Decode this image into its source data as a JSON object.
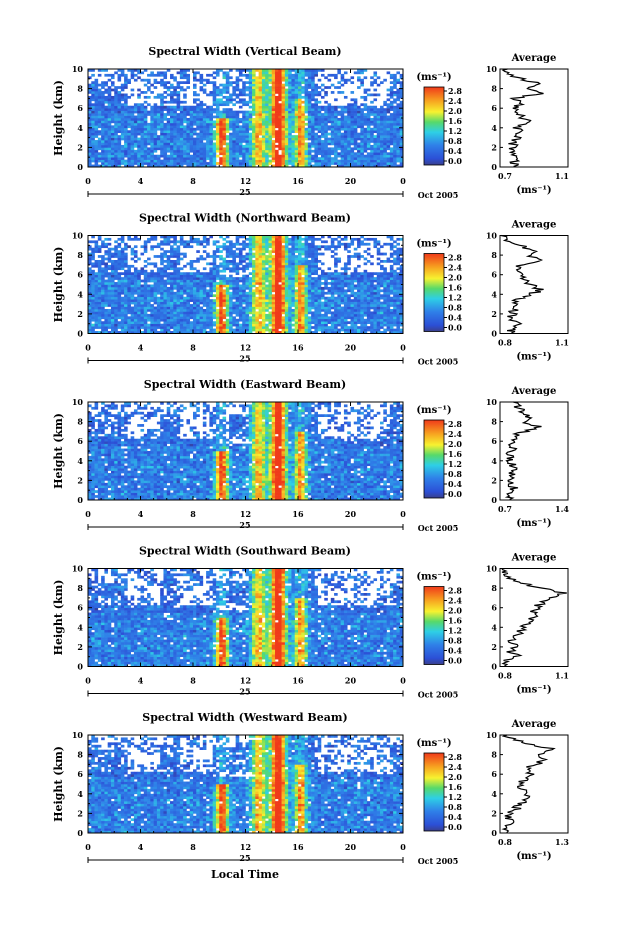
{
  "figure": {
    "time_axis_label": "Local Time",
    "date_day": "25",
    "date_month_year": "Oct 2005",
    "colorbar_unit": "(ms⁻¹)",
    "colorbar_ticks": [
      "0.0",
      "0.4",
      "0.8",
      "1.2",
      "1.6",
      "2.0",
      "2.4",
      "2.8"
    ],
    "time_ticks": [
      "0",
      "4",
      "8",
      "12",
      "16",
      "20",
      "0"
    ],
    "height_ticks": [
      "0",
      "2",
      "4",
      "6",
      "8",
      "10"
    ],
    "average_title": "Average",
    "average_xlabel": "(ms⁻¹)",
    "colors": {
      "red": "#f03a1a",
      "orange": "#f7a520",
      "yellow": "#f7f230",
      "green": "#57d96a",
      "cyan": "#2ecfe6",
      "blue": "#2f60e0",
      "navy": "#3a3f8c"
    }
  },
  "chart_data": [
    {
      "type": "heatmap",
      "title": "Spectral Width (Vertical Beam)",
      "ylabel": "Height (km)",
      "xlabel": "Local Time",
      "xlim": [
        0,
        24
      ],
      "ylim": [
        0,
        10
      ],
      "colorbar": {
        "unit": "ms⁻¹",
        "range": [
          0.0,
          2.8
        ]
      },
      "average_profile": {
        "title": "Average",
        "xlabel": "(ms⁻¹)",
        "xlim_labels": [
          "0.7",
          "1.1"
        ],
        "xlim": [
          0.7,
          1.1
        ],
        "height": [
          0.5,
          1,
          1.5,
          2,
          2.5,
          3,
          3.5,
          4,
          4.5,
          5,
          5.5,
          6,
          6.5,
          7,
          7.5,
          8,
          8.5,
          9,
          9.5,
          10
        ],
        "values": [
          0.78,
          0.8,
          0.76,
          0.79,
          0.77,
          0.8,
          0.82,
          0.79,
          0.88,
          0.84,
          0.8,
          0.79,
          0.82,
          0.78,
          0.95,
          0.86,
          0.92,
          0.82,
          0.76,
          0.74
        ]
      }
    },
    {
      "type": "heatmap",
      "title": "Spectral Width (Northward Beam)",
      "ylabel": "Height (km)",
      "xlabel": "Local Time",
      "xlim": [
        0,
        24
      ],
      "ylim": [
        0,
        10
      ],
      "colorbar": {
        "unit": "ms⁻¹",
        "range": [
          0.0,
          2.8
        ]
      },
      "average_profile": {
        "title": "Average",
        "xlabel": "(ms⁻¹)",
        "xlim_labels": [
          "0.8",
          "1.1"
        ],
        "xlim": [
          0.8,
          1.1
        ],
        "height": [
          0.5,
          1,
          1.5,
          2,
          2.5,
          3,
          3.5,
          4,
          4.5,
          5,
          5.5,
          6,
          6.5,
          7,
          7.5,
          8,
          8.5,
          9,
          9.5,
          10
        ],
        "values": [
          0.85,
          0.88,
          0.84,
          0.86,
          0.86,
          0.87,
          0.88,
          0.94,
          0.98,
          0.93,
          0.9,
          0.88,
          0.87,
          0.9,
          0.98,
          0.92,
          0.96,
          0.88,
          0.83,
          0.82
        ]
      }
    },
    {
      "type": "heatmap",
      "title": "Spectral Width (Eastward Beam)",
      "ylabel": "Height (km)",
      "xlabel": "Local Time",
      "xlim": [
        0,
        24
      ],
      "ylim": [
        0,
        10
      ],
      "colorbar": {
        "unit": "ms⁻¹",
        "range": [
          0.0,
          2.8
        ]
      },
      "average_profile": {
        "title": "Average",
        "xlabel": "(ms⁻¹)",
        "xlim_labels": [
          "0.7",
          "1.4"
        ],
        "xlim": [
          0.7,
          1.4
        ],
        "height": [
          0.5,
          1,
          1.5,
          2,
          2.5,
          3,
          3.5,
          4,
          4.5,
          5,
          5.5,
          6,
          6.5,
          7,
          7.5,
          8,
          8.5,
          9,
          9.5,
          10
        ],
        "values": [
          0.8,
          0.85,
          0.82,
          0.8,
          0.82,
          0.84,
          0.83,
          0.8,
          0.82,
          0.8,
          0.84,
          0.85,
          0.83,
          0.95,
          1.1,
          0.92,
          1.0,
          0.95,
          0.88,
          0.82
        ]
      }
    },
    {
      "type": "heatmap",
      "title": "Spectral Width (Southward Beam)",
      "ylabel": "Height (km)",
      "xlabel": "Local Time",
      "xlim": [
        0,
        24
      ],
      "ylim": [
        0,
        10
      ],
      "colorbar": {
        "unit": "ms⁻¹",
        "range": [
          0.0,
          2.8
        ]
      },
      "average_profile": {
        "title": "Average",
        "xlabel": "(ms⁻¹)",
        "xlim_labels": [
          "0.8",
          "1.1"
        ],
        "xlim": [
          0.8,
          1.1
        ],
        "height": [
          0.5,
          1,
          1.5,
          2,
          2.5,
          3,
          3.5,
          4,
          4.5,
          5,
          5.5,
          6,
          6.5,
          7,
          7.5,
          8,
          8.5,
          9,
          9.5,
          10
        ],
        "values": [
          0.82,
          0.88,
          0.84,
          0.86,
          0.85,
          0.87,
          0.88,
          0.9,
          0.92,
          0.94,
          0.95,
          0.96,
          0.98,
          1.02,
          1.08,
          0.98,
          0.9,
          0.84,
          0.82,
          0.8
        ]
      }
    },
    {
      "type": "heatmap",
      "title": "Spectral Width (Westward Beam)",
      "ylabel": "Height (km)",
      "xlabel": "Local Time",
      "xlim": [
        0,
        24
      ],
      "ylim": [
        0,
        10
      ],
      "colorbar": {
        "unit": "ms⁻¹",
        "range": [
          0.0,
          2.8
        ]
      },
      "average_profile": {
        "title": "Average",
        "xlabel": "(ms⁻¹)",
        "xlim_labels": [
          "0.8",
          "1.3"
        ],
        "xlim": [
          0.8,
          1.3
        ],
        "height": [
          0.5,
          1,
          1.5,
          2,
          2.5,
          3,
          3.5,
          4,
          4.5,
          5,
          5.5,
          6,
          6.5,
          7,
          7.5,
          8,
          8.5,
          9,
          9.5,
          10
        ],
        "values": [
          0.85,
          0.9,
          0.86,
          0.88,
          0.92,
          0.95,
          1.0,
          0.98,
          0.95,
          0.94,
          0.98,
          1.02,
          1.0,
          1.05,
          1.15,
          1.08,
          1.2,
          1.05,
          0.9,
          0.85
        ]
      }
    }
  ]
}
